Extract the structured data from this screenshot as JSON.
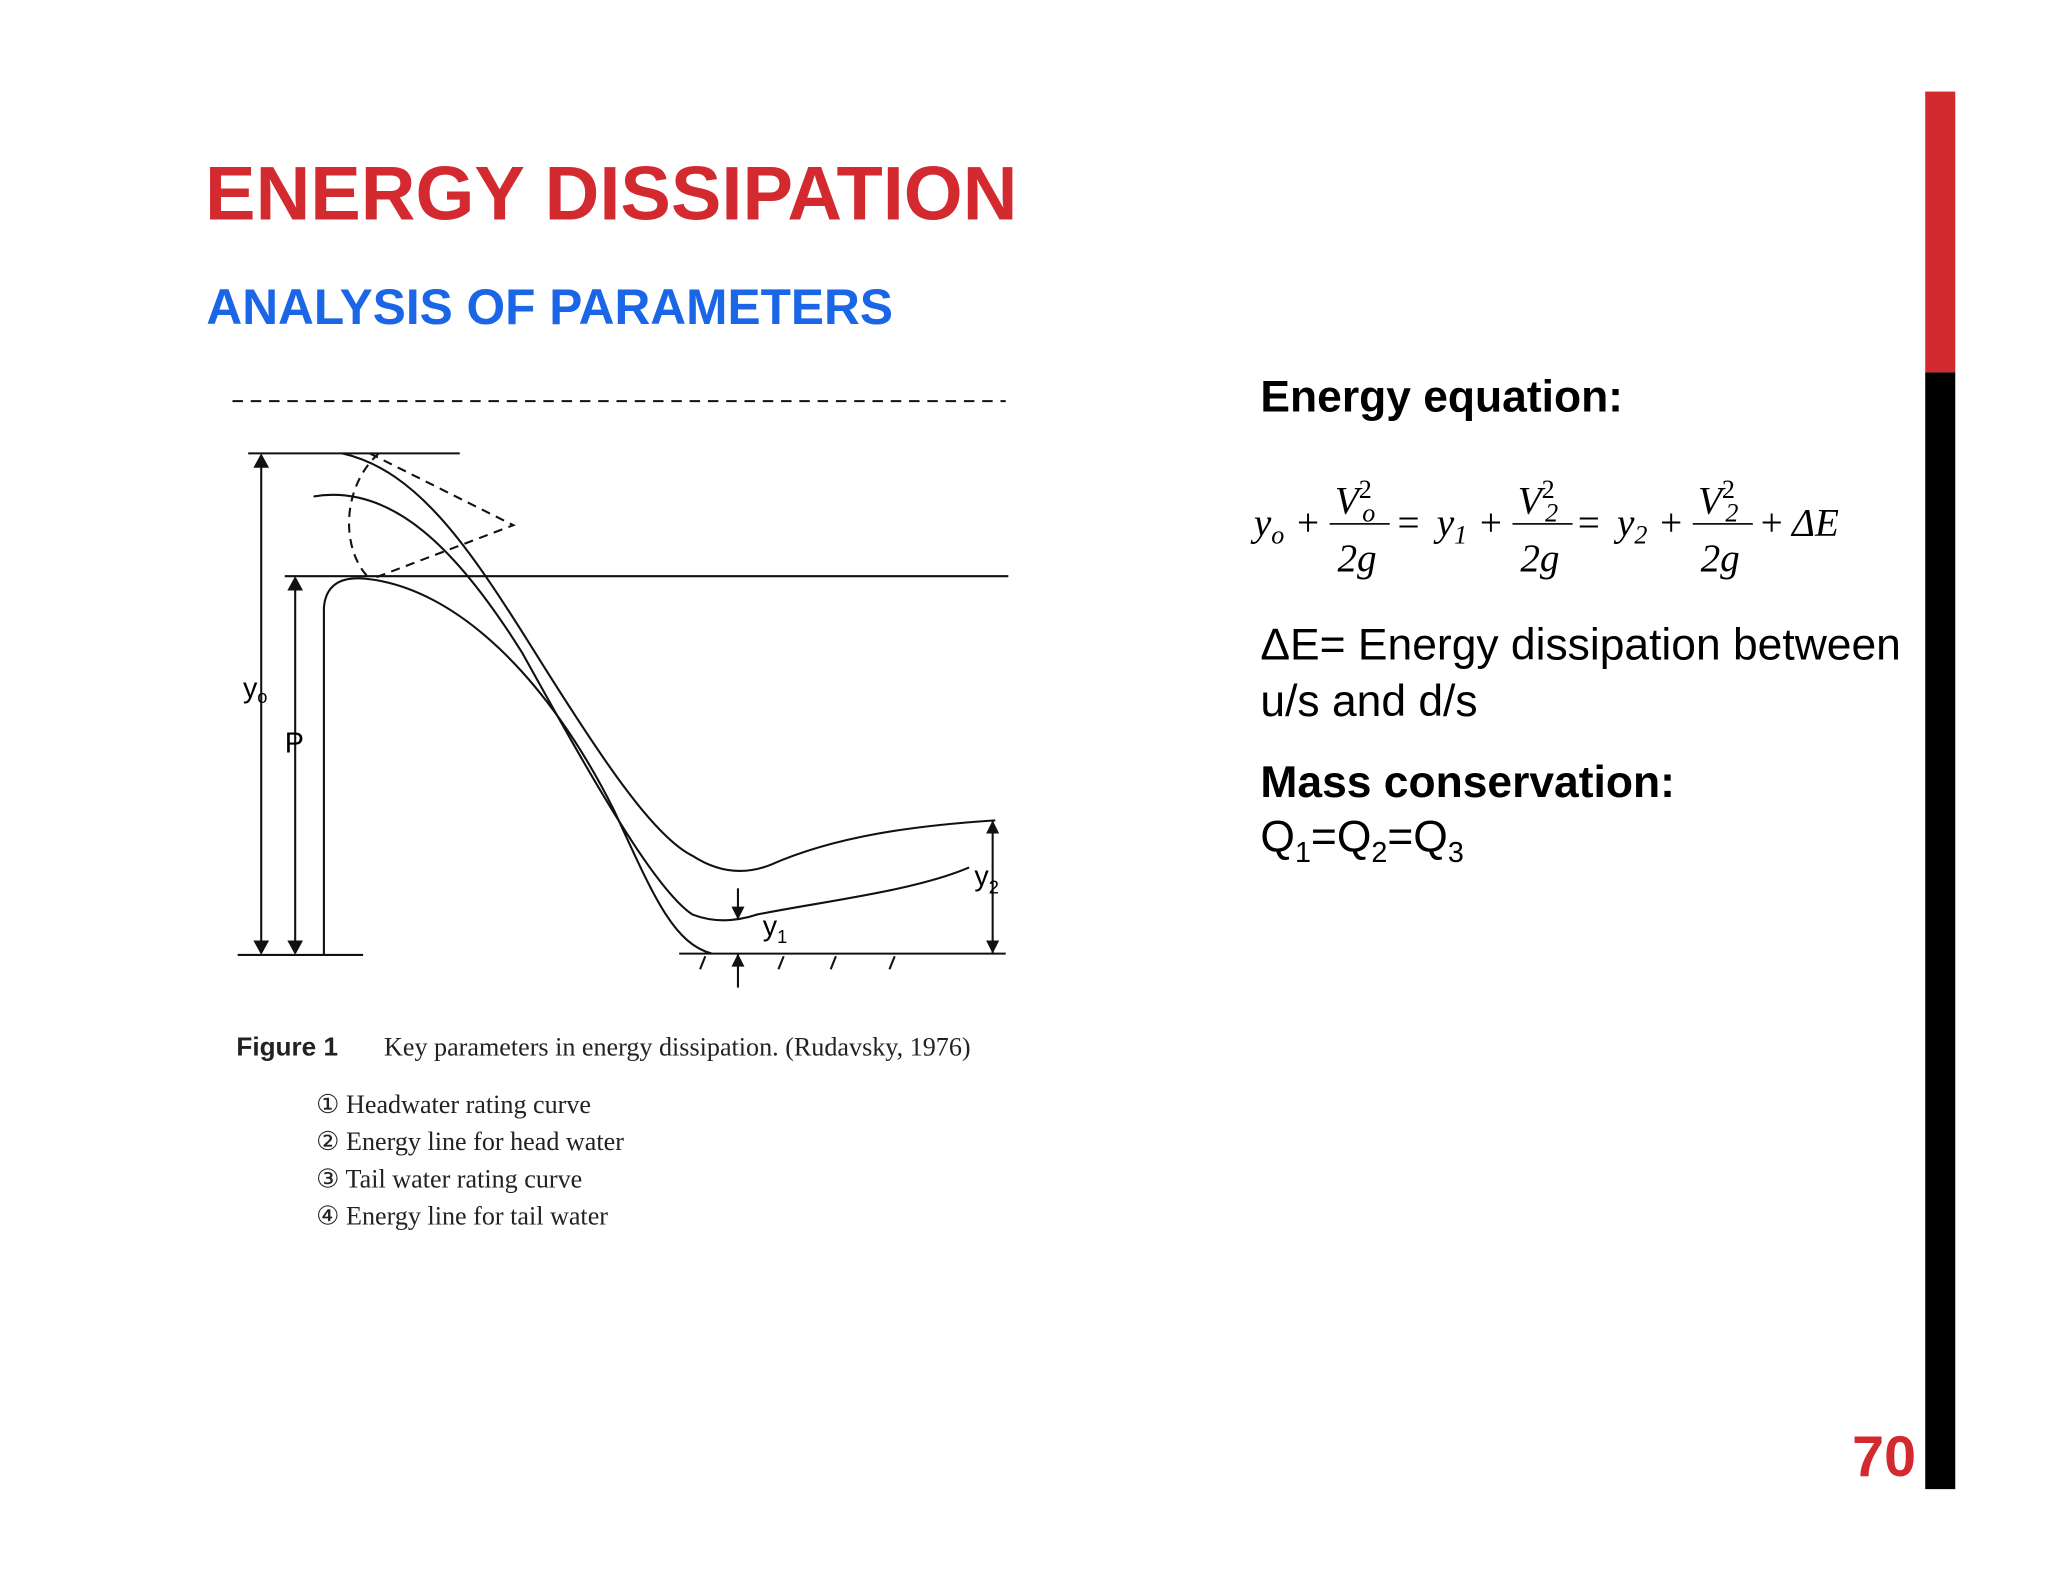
{
  "slide": {
    "title": "ENERGY DISSIPATION",
    "subtitle": "ANALYSIS OF PARAMETERS",
    "page_number": "70",
    "figure": {
      "labels": {
        "y_o": "y",
        "y_o_sub": "o",
        "p": "P",
        "y1": "y",
        "y1_sub": "1",
        "y2": "y",
        "y2_sub": "2"
      },
      "caption_label": "Figure 1",
      "caption_text": "Key parameters in energy dissipation. (Rudavsky, 1976)",
      "legend": [
        "① Headwater rating curve",
        "② Energy line for head water",
        "③ Tail water rating curve",
        "④ Energy line for tail water"
      ]
    },
    "energy_heading": "Energy equation:",
    "equation": {
      "terms": [
        {
          "var": "y",
          "sub": "o",
          "num": "V",
          "num_sub": "o",
          "num_sup": "2",
          "den": "2g"
        },
        {
          "var": "y",
          "sub": "1",
          "num": "V",
          "num_sub": "2",
          "num_sup": "2",
          "den": "2g"
        },
        {
          "var": "y",
          "sub": "2",
          "num": "V",
          "num_sub": "2",
          "num_sup": "2",
          "den": "2g"
        }
      ],
      "plus": "+",
      "equals": "=",
      "tail": "ΔE"
    },
    "delta_text": [
      "ΔE= Energy dissipation between",
      "u/s and d/s"
    ],
    "mass_heading": "Mass conservation:",
    "mass_formula": [
      {
        "text": "Q",
        "sub": "1"
      },
      {
        "text": "=Q",
        "sub": "2"
      },
      {
        "text": "=Q",
        "sub": "3"
      }
    ]
  }
}
